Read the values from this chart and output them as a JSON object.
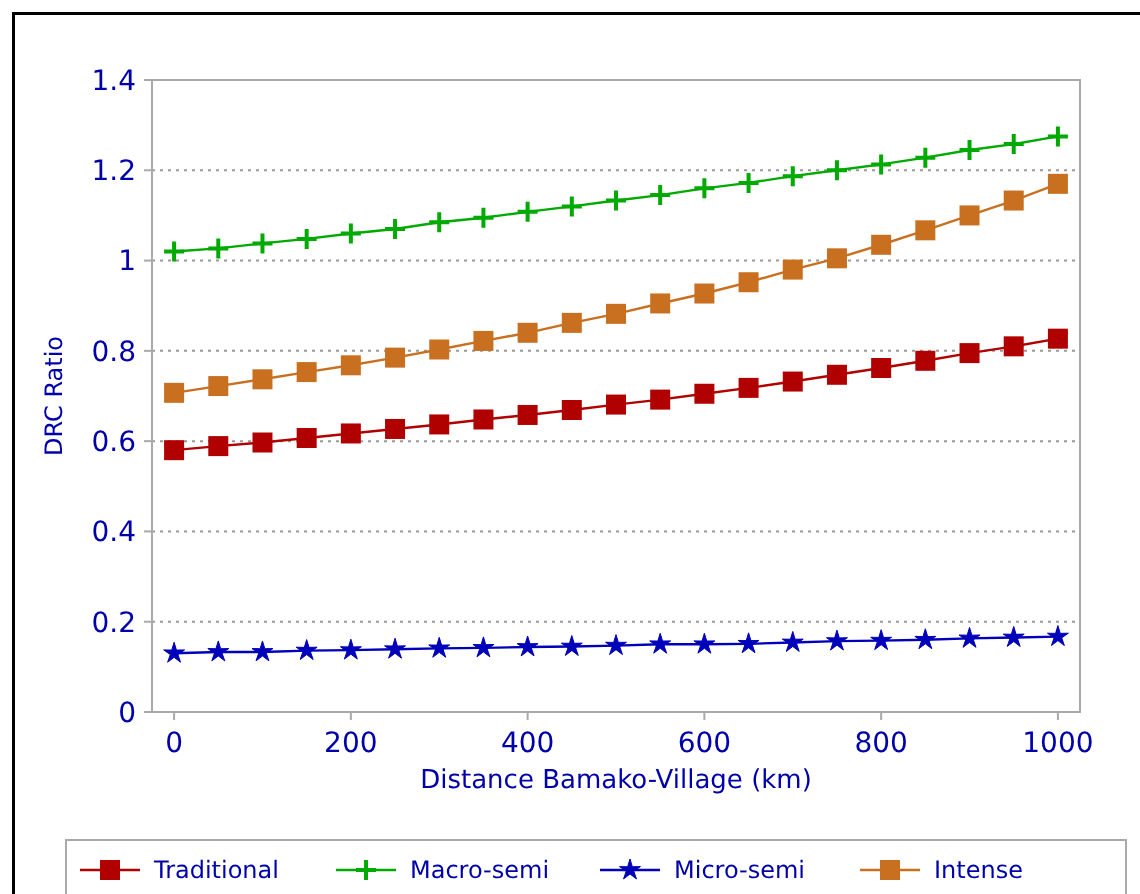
{
  "chart_data": {
    "type": "line",
    "xlabel": "Distance Bamako-Village (km)",
    "ylabel": "DRC Ratio",
    "x": [
      0,
      50,
      100,
      150,
      200,
      250,
      300,
      350,
      400,
      450,
      500,
      550,
      600,
      650,
      700,
      750,
      800,
      850,
      900,
      950,
      1000
    ],
    "xlim": [
      -25,
      1025
    ],
    "xticks": [
      0,
      200,
      400,
      600,
      800,
      1000
    ],
    "ylim": [
      0,
      1.4
    ],
    "yticks": [
      0,
      0.2,
      0.4,
      0.6,
      0.8,
      1,
      1.2,
      1.4
    ],
    "grid": "y",
    "legend": "bottom",
    "series": [
      {
        "name": "Traditional",
        "color": "#b00000",
        "marker": "square",
        "values": [
          0.58,
          0.589,
          0.597,
          0.607,
          0.617,
          0.627,
          0.637,
          0.648,
          0.658,
          0.669,
          0.681,
          0.692,
          0.705,
          0.718,
          0.732,
          0.747,
          0.762,
          0.778,
          0.795,
          0.81,
          0.827
        ]
      },
      {
        "name": "Macro-semi",
        "color": "#00aa00",
        "marker": "cross",
        "values": [
          1.02,
          1.027,
          1.038,
          1.048,
          1.06,
          1.07,
          1.085,
          1.095,
          1.108,
          1.12,
          1.133,
          1.145,
          1.16,
          1.172,
          1.187,
          1.2,
          1.213,
          1.228,
          1.245,
          1.258,
          1.275
        ]
      },
      {
        "name": "Micro-semi",
        "color": "#0000bb",
        "marker": "star",
        "values": [
          0.13,
          0.133,
          0.133,
          0.136,
          0.137,
          0.139,
          0.141,
          0.142,
          0.144,
          0.145,
          0.147,
          0.15,
          0.15,
          0.151,
          0.154,
          0.157,
          0.158,
          0.16,
          0.163,
          0.165,
          0.167
        ]
      },
      {
        "name": "Intense",
        "color": "#c87020",
        "marker": "square",
        "values": [
          0.707,
          0.722,
          0.737,
          0.753,
          0.768,
          0.785,
          0.803,
          0.822,
          0.84,
          0.862,
          0.882,
          0.905,
          0.927,
          0.952,
          0.98,
          1.005,
          1.035,
          1.067,
          1.1,
          1.133,
          1.17
        ]
      }
    ]
  }
}
